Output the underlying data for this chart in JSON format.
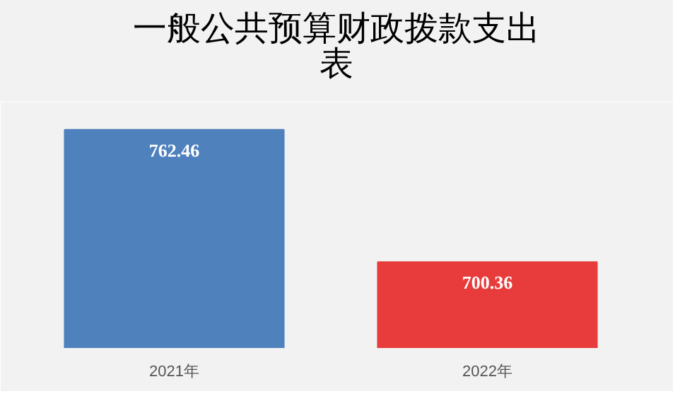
{
  "chart_data": {
    "type": "bar",
    "title": "一般公共预算财政拨款支出表",
    "categories": [
      "2021年",
      "2022年"
    ],
    "values": [
      762.46,
      700.36
    ],
    "colors": [
      "#4f81bd",
      "#e83c3c"
    ],
    "ylim": [
      660,
      770
    ],
    "data_labels": true,
    "grid": false
  }
}
